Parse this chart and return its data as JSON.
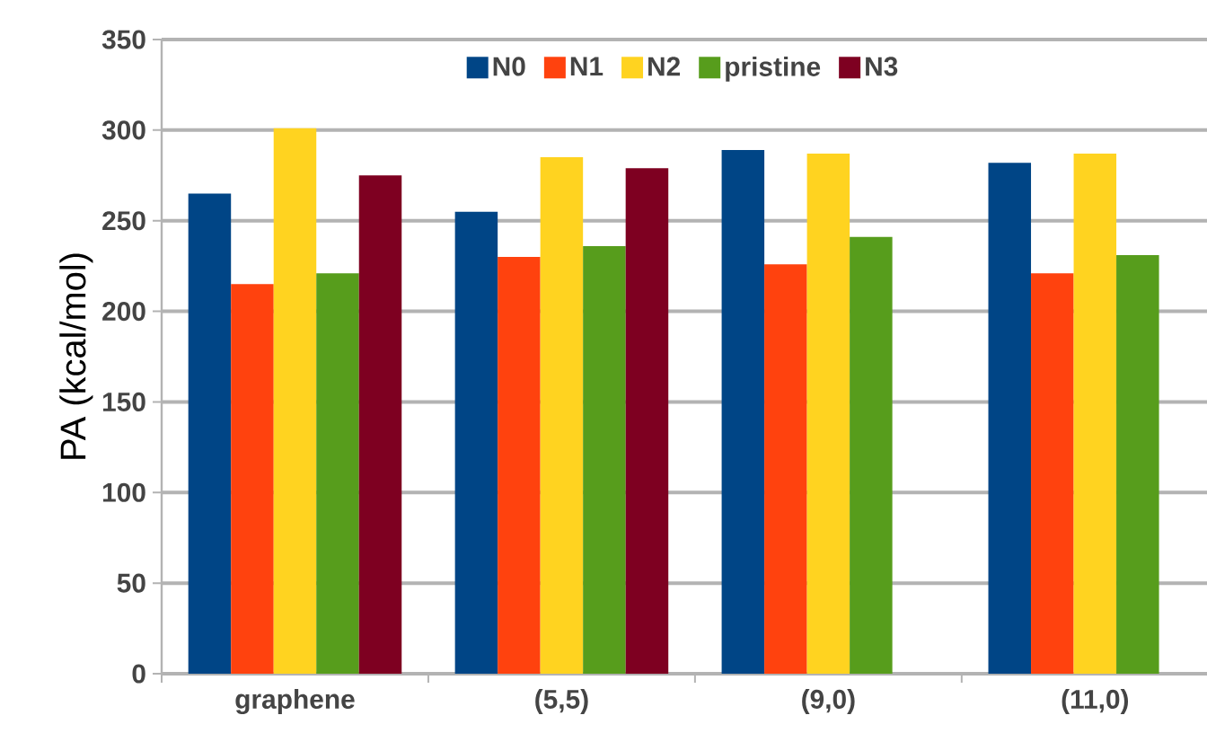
{
  "chart_data": {
    "type": "bar",
    "ylabel": "PA (kcal/mol)",
    "categories": [
      "graphene",
      "(5,5)",
      "(9,0)",
      "(11,0)"
    ],
    "series": [
      {
        "name": "N0",
        "color": "#004586",
        "values": [
          265,
          255,
          289,
          282
        ]
      },
      {
        "name": "N1",
        "color": "#ff420e",
        "values": [
          215,
          230,
          226,
          221
        ]
      },
      {
        "name": "N2",
        "color": "#ffd320",
        "values": [
          301,
          285,
          287,
          287
        ]
      },
      {
        "name": "pristine",
        "color": "#579d1c",
        "values": [
          221,
          236,
          241,
          231
        ]
      },
      {
        "name": "N3",
        "color": "#7e0021",
        "values": [
          275,
          279,
          null,
          null
        ]
      }
    ],
    "ylim": [
      0,
      350
    ],
    "yticks": [
      0,
      50,
      100,
      150,
      200,
      250,
      300,
      350
    ],
    "grid": "y",
    "legend": "top"
  }
}
